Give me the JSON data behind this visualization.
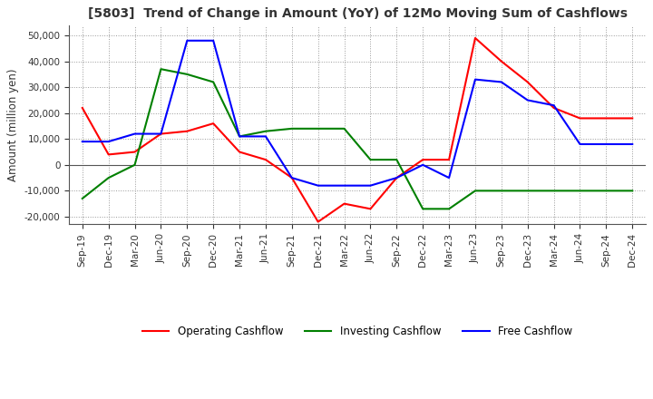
{
  "title": "[5803]  Trend of Change in Amount (YoY) of 12Mo Moving Sum of Cashflows",
  "ylabel": "Amount (million yen)",
  "ylim": [
    -23000,
    54000
  ],
  "yticks": [
    -20000,
    -10000,
    0,
    10000,
    20000,
    30000,
    40000,
    50000
  ],
  "x_labels": [
    "Sep-19",
    "Dec-19",
    "Mar-20",
    "Jun-20",
    "Sep-20",
    "Dec-20",
    "Mar-21",
    "Jun-21",
    "Sep-21",
    "Dec-21",
    "Mar-22",
    "Jun-22",
    "Sep-22",
    "Dec-22",
    "Mar-23",
    "Jun-23",
    "Sep-23",
    "Dec-23",
    "Mar-24",
    "Jun-24",
    "Sep-24",
    "Dec-24"
  ],
  "operating": [
    22000,
    4000,
    5000,
    12000,
    13000,
    16000,
    5000,
    2000,
    -5000,
    -22000,
    -15000,
    -17000,
    -5000,
    2000,
    2000,
    49000,
    40000,
    32000,
    22000,
    18000,
    18000,
    18000
  ],
  "investing": [
    -13000,
    -5000,
    0,
    37000,
    35000,
    32000,
    11000,
    13000,
    14000,
    14000,
    14000,
    2000,
    2000,
    -17000,
    -17000,
    -10000,
    -10000,
    -10000,
    -10000,
    -10000,
    -10000,
    -10000
  ],
  "free": [
    9000,
    9000,
    12000,
    12000,
    48000,
    48000,
    11000,
    11000,
    -5000,
    -8000,
    -8000,
    -8000,
    -5000,
    0,
    -5000,
    33000,
    32000,
    25000,
    23000,
    8000,
    8000,
    8000
  ],
  "colors": {
    "operating": "#ff0000",
    "investing": "#008000",
    "free": "#0000ff"
  },
  "legend_labels": [
    "Operating Cashflow",
    "Investing Cashflow",
    "Free Cashflow"
  ],
  "bg_color": "#ffffff",
  "grid_color": "#999999",
  "title_color": "#333333"
}
